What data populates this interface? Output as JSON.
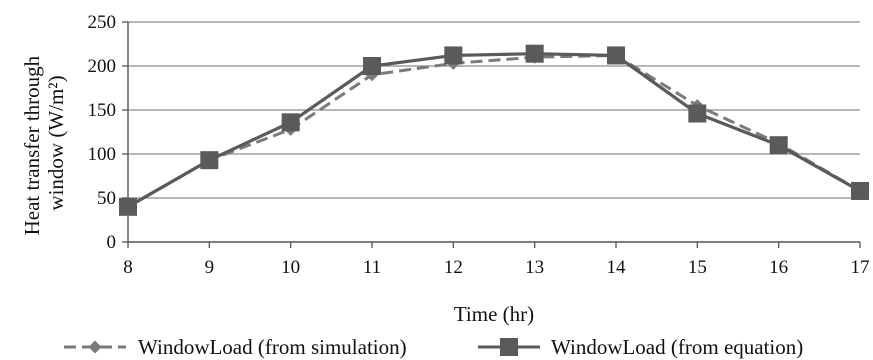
{
  "chart_data": {
    "type": "line",
    "x": [
      8,
      9,
      10,
      11,
      12,
      13,
      14,
      15,
      16,
      17
    ],
    "xlabel": "Time (hr)",
    "ylabel": [
      "Heat transfer through",
      "window (W/m²)"
    ],
    "ylim": [
      0,
      250
    ],
    "yticks": [
      0,
      50,
      100,
      150,
      200,
      250
    ],
    "grid": "horizontal",
    "legend": "bottom",
    "series": [
      {
        "name": "WindowLoad (from simulation)",
        "values": [
          40,
          93,
          128,
          190,
          203,
          210,
          212,
          155,
          112,
          58
        ],
        "line_style": "dashed",
        "marker": "diamond",
        "color": "#7a7a7a"
      },
      {
        "name": "WindowLoad (from equation)",
        "values": [
          40,
          93,
          136,
          200,
          212,
          214,
          212,
          146,
          110,
          58
        ],
        "line_style": "solid",
        "marker": "square",
        "color": "#5a5a5a"
      }
    ]
  }
}
